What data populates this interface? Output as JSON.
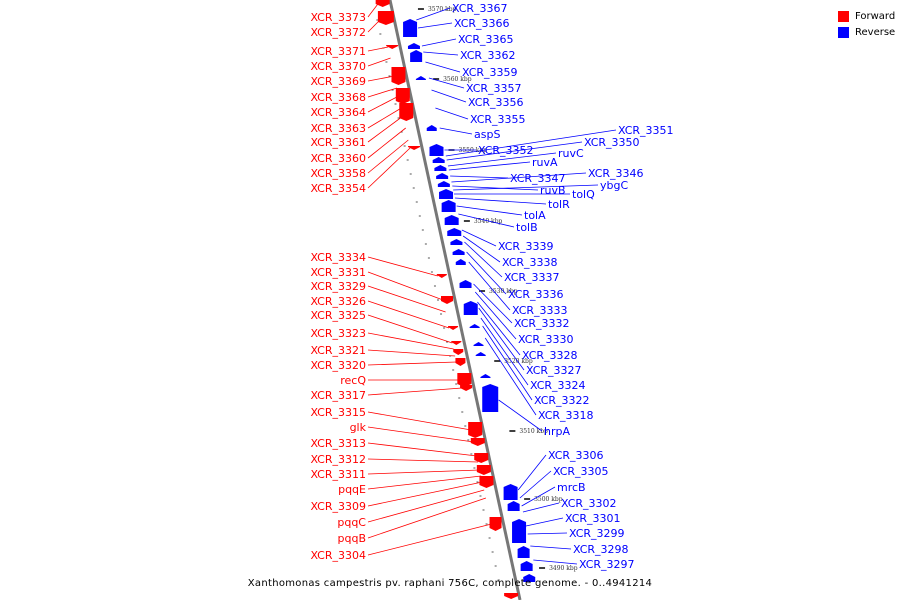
{
  "caption": "Xanthomonas campestris pv. raphani 756C, complete genome. - 0..4941214",
  "legend": [
    {
      "label": "Forward",
      "color": "#ff0000"
    },
    {
      "label": "Reverse",
      "color": "#0000ff"
    }
  ],
  "colors": {
    "forward": "#ff0000",
    "reverse": "#0000ff",
    "backbone": "#777777",
    "scale": "#000000"
  },
  "scale_ticks": [
    "3570 kbp",
    "3560 kbp",
    "3550 kbp",
    "3540 kbp",
    "3530 kbp",
    "3520 kbp",
    "3510 kbp",
    "3500 kbp",
    "3490 kbp"
  ],
  "forward_labels": [
    "XCR_3373",
    "XCR_3372",
    "XCR_3371",
    "XCR_3370",
    "XCR_3369",
    "XCR_3368",
    "XCR_3364",
    "XCR_3363",
    "XCR_3361",
    "XCR_3360",
    "XCR_3358",
    "XCR_3354",
    "XCR_3334",
    "XCR_3331",
    "XCR_3329",
    "XCR_3326",
    "XCR_3325",
    "XCR_3323",
    "XCR_3321",
    "XCR_3320",
    "recQ",
    "XCR_3317",
    "XCR_3315",
    "glk",
    "XCR_3313",
    "XCR_3312",
    "XCR_3311",
    "pqqE",
    "XCR_3309",
    "pqqC",
    "pqqB",
    "XCR_3304"
  ],
  "reverse_labels": [
    "XCR_3367",
    "XCR_3366",
    "XCR_3365",
    "XCR_3362",
    "XCR_3359",
    "XCR_3357",
    "XCR_3356",
    "XCR_3355",
    "aspS",
    "XCR_3352",
    "XCR_3351",
    "XCR_3350",
    "ruvC",
    "ruvA",
    "XCR_3347",
    "XCR_3346",
    "ruvB",
    "ybgC",
    "tolQ",
    "tolR",
    "tolA",
    "tolB",
    "XCR_3339",
    "XCR_3338",
    "XCR_3337",
    "XCR_3336",
    "XCR_3333",
    "XCR_3332",
    "XCR_3330",
    "XCR_3328",
    "XCR_3327",
    "XCR_3324",
    "XCR_3322",
    "XCR_3318",
    "hrpA",
    "XCR_3306",
    "XCR_3305",
    "mrcB",
    "XCR_3302",
    "XCR_3301",
    "XCR_3299",
    "XCR_3298",
    "XCR_3297"
  ]
}
